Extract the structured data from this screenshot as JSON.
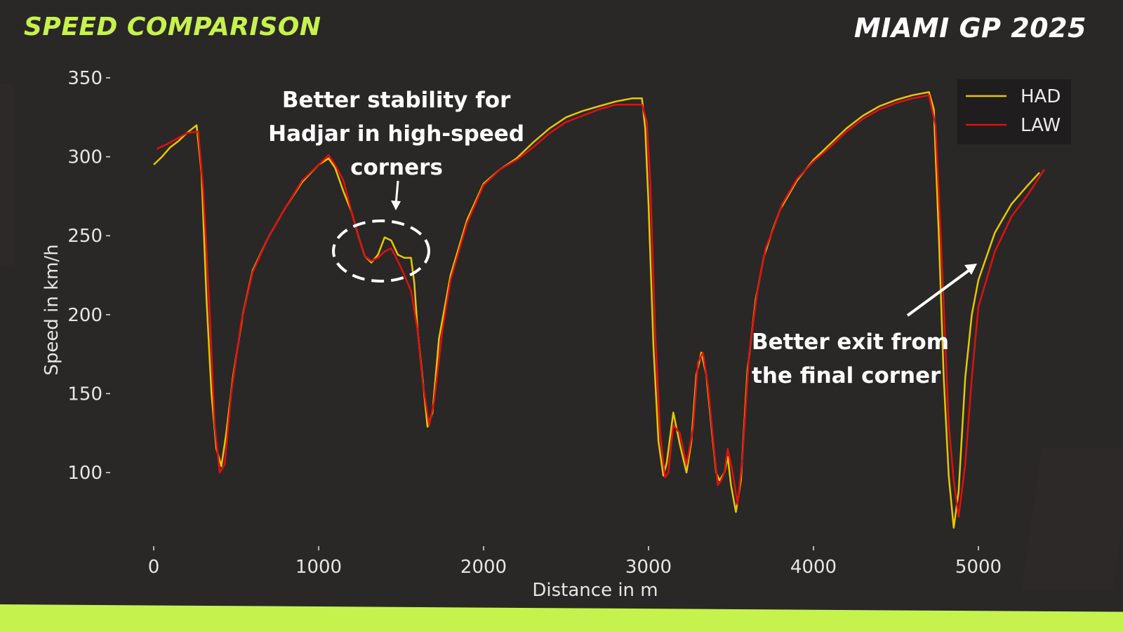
{
  "header": {
    "title": "SPEED COMPARISON",
    "event": "MIAMI GP 2025"
  },
  "colors": {
    "background": "#2a2727",
    "accent": "#c6f24e",
    "had": "#e6c800",
    "law": "#e01010",
    "legend_bg": "#1f1d1d"
  },
  "chart_data": {
    "type": "line",
    "xlabel": "Distance in m",
    "ylabel": "Speed in km/h",
    "xlim": [
      -250,
      5650
    ],
    "ylim": [
      50,
      355
    ],
    "xticks": [
      0,
      1000,
      2000,
      3000,
      4000,
      5000
    ],
    "yticks": [
      100,
      150,
      200,
      250,
      300,
      350
    ],
    "grid": false,
    "legend_position": "top-right",
    "series": [
      {
        "name": "HAD",
        "color": "#e6c800",
        "points": [
          [
            0,
            295
          ],
          [
            50,
            300
          ],
          [
            100,
            306
          ],
          [
            150,
            310
          ],
          [
            200,
            315
          ],
          [
            260,
            320
          ],
          [
            290,
            290
          ],
          [
            320,
            210
          ],
          [
            350,
            150
          ],
          [
            380,
            115
          ],
          [
            410,
            104
          ],
          [
            440,
            125
          ],
          [
            480,
            160
          ],
          [
            540,
            200
          ],
          [
            600,
            228
          ],
          [
            700,
            250
          ],
          [
            800,
            268
          ],
          [
            900,
            284
          ],
          [
            1000,
            295
          ],
          [
            1060,
            299
          ],
          [
            1100,
            293
          ],
          [
            1150,
            278
          ],
          [
            1200,
            265
          ],
          [
            1240,
            250
          ],
          [
            1280,
            237
          ],
          [
            1320,
            233
          ],
          [
            1360,
            238
          ],
          [
            1400,
            249
          ],
          [
            1440,
            247
          ],
          [
            1480,
            238
          ],
          [
            1520,
            236
          ],
          [
            1560,
            236
          ],
          [
            1580,
            220
          ],
          [
            1600,
            190
          ],
          [
            1630,
            160
          ],
          [
            1660,
            129
          ],
          [
            1690,
            138
          ],
          [
            1730,
            185
          ],
          [
            1800,
            225
          ],
          [
            1900,
            260
          ],
          [
            2000,
            283
          ],
          [
            2100,
            292
          ],
          [
            2200,
            299
          ],
          [
            2300,
            309
          ],
          [
            2400,
            318
          ],
          [
            2500,
            325
          ],
          [
            2600,
            329
          ],
          [
            2700,
            332
          ],
          [
            2800,
            335
          ],
          [
            2900,
            337
          ],
          [
            2960,
            337
          ],
          [
            2980,
            318
          ],
          [
            3000,
            270
          ],
          [
            3030,
            180
          ],
          [
            3060,
            120
          ],
          [
            3090,
            98
          ],
          [
            3110,
            106
          ],
          [
            3150,
            138
          ],
          [
            3190,
            118
          ],
          [
            3230,
            100
          ],
          [
            3260,
            120
          ],
          [
            3290,
            162
          ],
          [
            3320,
            176
          ],
          [
            3350,
            162
          ],
          [
            3390,
            120
          ],
          [
            3410,
            100
          ],
          [
            3430,
            95
          ],
          [
            3460,
            100
          ],
          [
            3480,
            110
          ],
          [
            3500,
            92
          ],
          [
            3530,
            75
          ],
          [
            3560,
            95
          ],
          [
            3600,
            165
          ],
          [
            3650,
            210
          ],
          [
            3700,
            237
          ],
          [
            3750,
            253
          ],
          [
            3800,
            267
          ],
          [
            3900,
            285
          ],
          [
            4000,
            298
          ],
          [
            4100,
            308
          ],
          [
            4200,
            318
          ],
          [
            4300,
            326
          ],
          [
            4400,
            332
          ],
          [
            4500,
            336
          ],
          [
            4600,
            339
          ],
          [
            4700,
            341
          ],
          [
            4730,
            330
          ],
          [
            4760,
            250
          ],
          [
            4790,
            160
          ],
          [
            4820,
            98
          ],
          [
            4850,
            65
          ],
          [
            4880,
            88
          ],
          [
            4920,
            160
          ],
          [
            4960,
            200
          ],
          [
            5000,
            222
          ],
          [
            5100,
            252
          ],
          [
            5200,
            270
          ],
          [
            5300,
            282
          ],
          [
            5370,
            290
          ]
        ]
      },
      {
        "name": "LAW",
        "color": "#e01010",
        "points": [
          [
            20,
            305
          ],
          [
            80,
            308
          ],
          [
            150,
            312
          ],
          [
            200,
            315
          ],
          [
            270,
            316
          ],
          [
            300,
            280
          ],
          [
            340,
            200
          ],
          [
            370,
            130
          ],
          [
            400,
            100
          ],
          [
            430,
            105
          ],
          [
            470,
            150
          ],
          [
            530,
            195
          ],
          [
            600,
            227
          ],
          [
            700,
            250
          ],
          [
            800,
            268
          ],
          [
            900,
            285
          ],
          [
            1000,
            295
          ],
          [
            1060,
            301
          ],
          [
            1100,
            295
          ],
          [
            1150,
            285
          ],
          [
            1200,
            265
          ],
          [
            1240,
            250
          ],
          [
            1280,
            237
          ],
          [
            1320,
            234
          ],
          [
            1360,
            236
          ],
          [
            1400,
            240
          ],
          [
            1440,
            242
          ],
          [
            1480,
            234
          ],
          [
            1520,
            225
          ],
          [
            1560,
            215
          ],
          [
            1600,
            190
          ],
          [
            1630,
            158
          ],
          [
            1670,
            130
          ],
          [
            1700,
            145
          ],
          [
            1750,
            190
          ],
          [
            1800,
            222
          ],
          [
            1900,
            258
          ],
          [
            2000,
            282
          ],
          [
            2100,
            292
          ],
          [
            2200,
            298
          ],
          [
            2300,
            306
          ],
          [
            2400,
            315
          ],
          [
            2500,
            322
          ],
          [
            2600,
            326
          ],
          [
            2700,
            330
          ],
          [
            2800,
            333
          ],
          [
            2900,
            333
          ],
          [
            2960,
            333
          ],
          [
            2990,
            322
          ],
          [
            3010,
            285
          ],
          [
            3040,
            190
          ],
          [
            3070,
            125
          ],
          [
            3100,
            97
          ],
          [
            3120,
            100
          ],
          [
            3150,
            130
          ],
          [
            3190,
            125
          ],
          [
            3230,
            105
          ],
          [
            3270,
            128
          ],
          [
            3300,
            170
          ],
          [
            3330,
            176
          ],
          [
            3360,
            155
          ],
          [
            3400,
            112
          ],
          [
            3420,
            92
          ],
          [
            3440,
            95
          ],
          [
            3460,
            100
          ],
          [
            3480,
            115
          ],
          [
            3510,
            100
          ],
          [
            3540,
            80
          ],
          [
            3570,
            110
          ],
          [
            3610,
            175
          ],
          [
            3660,
            215
          ],
          [
            3710,
            242
          ],
          [
            3760,
            255
          ],
          [
            3810,
            270
          ],
          [
            3900,
            286
          ],
          [
            4000,
            297
          ],
          [
            4100,
            306
          ],
          [
            4200,
            316
          ],
          [
            4300,
            324
          ],
          [
            4400,
            330
          ],
          [
            4500,
            334
          ],
          [
            4600,
            337
          ],
          [
            4700,
            339
          ],
          [
            4740,
            320
          ],
          [
            4780,
            230
          ],
          [
            4820,
            130
          ],
          [
            4850,
            95
          ],
          [
            4880,
            72
          ],
          [
            4920,
            105
          ],
          [
            4960,
            160
          ],
          [
            5000,
            205
          ],
          [
            5100,
            240
          ],
          [
            5200,
            262
          ],
          [
            5300,
            276
          ],
          [
            5400,
            292
          ]
        ]
      }
    ],
    "annotations": [
      {
        "lines": [
          "Better stability for",
          "Hadjar in high-speed",
          "corners"
        ]
      },
      {
        "lines": [
          "Better exit from",
          "the final corner"
        ]
      }
    ]
  }
}
